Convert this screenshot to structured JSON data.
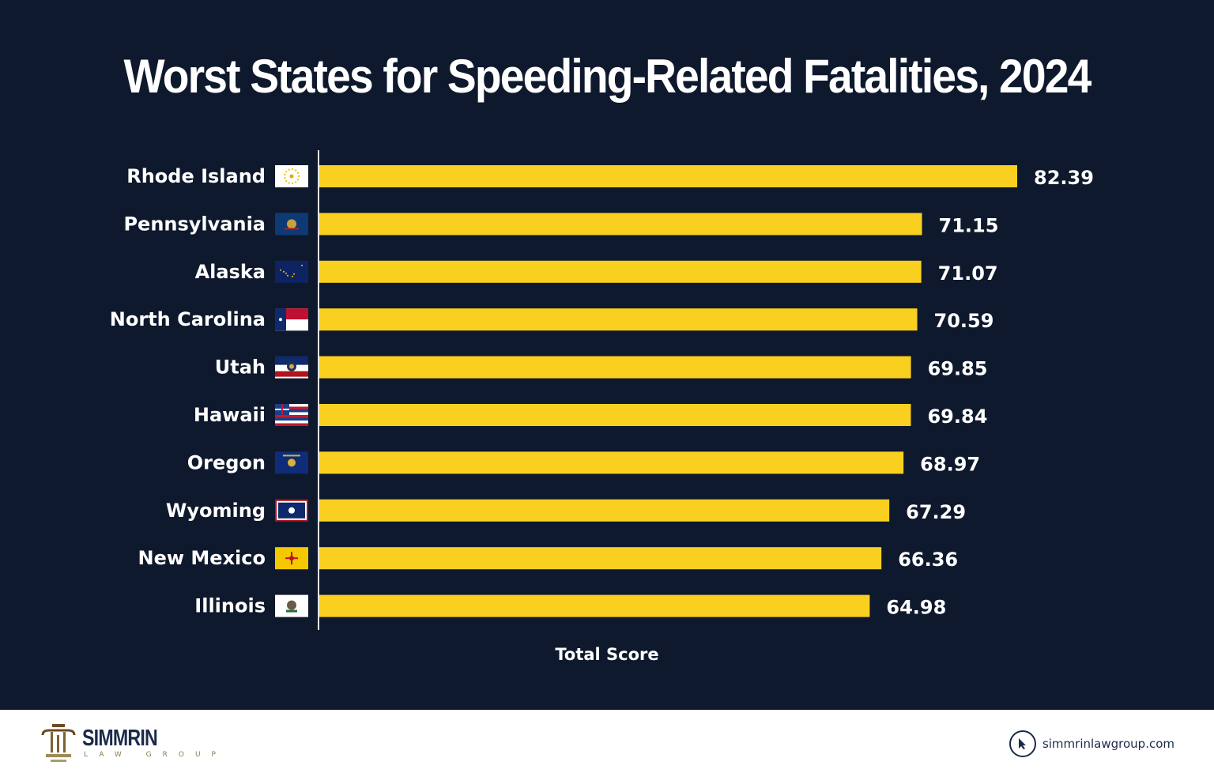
{
  "chart_data": {
    "type": "bar",
    "orientation": "horizontal",
    "title": "Worst States for Speeding-Related Fatalities, 2024",
    "xlabel": "Total Score",
    "ylabel": "",
    "xlim": [
      0,
      82.39
    ],
    "grid": false,
    "categories": [
      "Rhode Island",
      "Pennsylvania",
      "Alaska",
      "North Carolina",
      "Utah",
      "Hawaii",
      "Oregon",
      "Wyoming",
      "New Mexico",
      "Illinois"
    ],
    "values": [
      82.39,
      71.15,
      71.07,
      70.59,
      69.85,
      69.84,
      68.97,
      67.29,
      66.36,
      64.98
    ],
    "value_labels": [
      "82.39",
      "71.15",
      "71.07",
      "70.59",
      "69.85",
      "69.84",
      "68.97",
      "67.29",
      "66.36",
      "64.98"
    ],
    "flags": [
      "rhode-island-flag-icon",
      "pennsylvania-flag-icon",
      "alaska-flag-icon",
      "north-carolina-flag-icon",
      "utah-flag-icon",
      "hawaii-flag-icon",
      "oregon-flag-icon",
      "wyoming-flag-icon",
      "new-mexico-flag-icon",
      "illinois-flag-icon"
    ],
    "bar_color": "#f9cf20",
    "background_color": "#0f192d"
  },
  "footer": {
    "logo_name": "SIMMRIN",
    "logo_sub": "LAW GROUP",
    "website": "simmrinlawgroup.com"
  }
}
